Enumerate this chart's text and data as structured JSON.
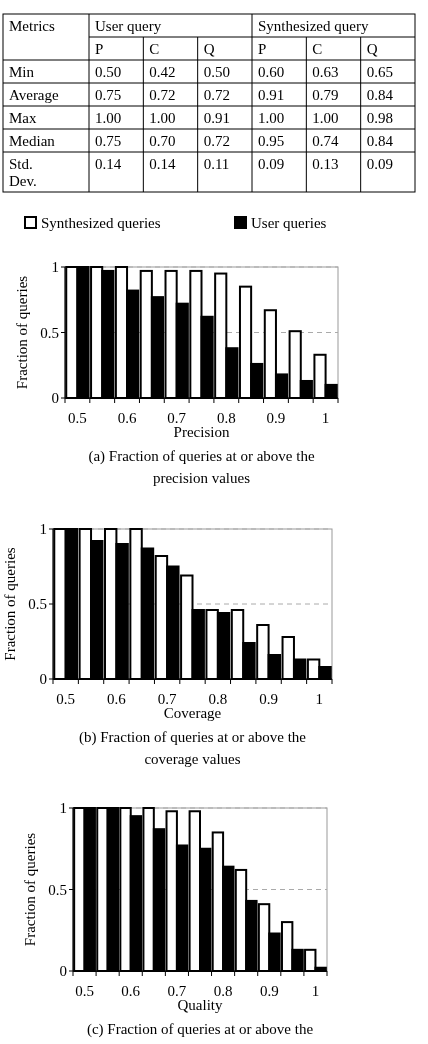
{
  "chart_data": [
    {
      "type": "heatmap",
      "categories": [
        "P",
        "C",
        "Q",
        "P",
        "C",
        "Q"
      ],
      "y_categories": [
        "Min",
        "Average",
        "Max",
        "Median",
        "Std. Dev."
      ],
      "cells": [
        [
          0.5,
          0.42,
          0.5,
          0.6,
          0.63,
          0.65
        ],
        [
          0.75,
          0.72,
          0.72,
          0.91,
          0.79,
          0.84
        ],
        [
          1.0,
          1.0,
          0.91,
          1.0,
          1.0,
          0.98
        ],
        [
          0.75,
          0.7,
          0.72,
          0.95,
          0.74,
          0.84
        ],
        [
          0.14,
          0.14,
          0.11,
          0.09,
          0.13,
          0.09
        ]
      ],
      "cell_labels": [
        [
          "0.50",
          "0.42",
          "0.50",
          "0.60",
          "0.63",
          "0.65"
        ],
        [
          "0.75",
          "0.72",
          "0.72",
          "0.91",
          "0.79",
          "0.84"
        ],
        [
          "1.00",
          "1.00",
          "0.91",
          "1.00",
          "1.00",
          "0.98"
        ],
        [
          "0.75",
          "0.70",
          "0.72",
          "0.95",
          "0.74",
          "0.84"
        ],
        [
          "0.14",
          "0.14",
          "0.11",
          "0.09",
          "0.13",
          "0.09"
        ]
      ],
      "annotations": [
        "Metrics",
        "User query",
        "Synthesized query"
      ]
    },
    {
      "type": "bar",
      "title": "(a) Fraction of queries at or above the precision values",
      "xlabel": "Precision",
      "ylabel": "Fraction of queries",
      "categories": [
        "0.5",
        null,
        "0.6",
        null,
        "0.7",
        null,
        "0.8",
        null,
        "0.9",
        null,
        "1"
      ],
      "series": [
        {
          "name": "Synthesized queries",
          "color": "#ffffff",
          "values": [
            1,
            1,
            1,
            0.97,
            0.97,
            0.97,
            0.95,
            0.85,
            0.67,
            0.51,
            0.33
          ]
        },
        {
          "name": "User queries",
          "color": "#000000",
          "values": [
            1,
            0.97,
            0.82,
            0.77,
            0.72,
            0.62,
            0.38,
            0.26,
            0.18,
            0.13,
            0.1
          ]
        }
      ],
      "ylim": [
        0,
        1
      ],
      "yticks": [
        0,
        0.5,
        1
      ],
      "grid": "y",
      "legend": "top"
    },
    {
      "type": "bar",
      "title": "(b) Fraction of queries at or above the coverage values",
      "xlabel": "Coverage",
      "ylabel": "Fraction of queries",
      "categories": [
        "0.5",
        null,
        "0.6",
        null,
        "0.7",
        null,
        "0.8",
        null,
        "0.9",
        null,
        "1"
      ],
      "series": [
        {
          "color": "#ffffff",
          "values": [
            1,
            1,
            1,
            1,
            0.82,
            0.69,
            0.46,
            0.46,
            0.36,
            0.28,
            0.13
          ]
        },
        {
          "color": "#000000",
          "values": [
            1,
            0.92,
            0.9,
            0.87,
            0.75,
            0.46,
            0.44,
            0.24,
            0.16,
            0.13,
            0.08
          ]
        }
      ],
      "ylim": [
        0,
        1
      ],
      "yticks": [
        0,
        0.5,
        1
      ],
      "grid": "y"
    },
    {
      "type": "bar",
      "title": "(c) Fraction of queries at or above the",
      "xlabel": "Quality",
      "ylabel": "Fraction of queries",
      "categories": [
        "0.5",
        null,
        "0.6",
        null,
        "0.7",
        null,
        "0.8",
        null,
        "0.9",
        null,
        "1"
      ],
      "series": [
        {
          "color": "#ffffff",
          "values": [
            1,
            1,
            1,
            1,
            0.98,
            0.98,
            0.85,
            0.62,
            0.41,
            0.3,
            0.13
          ]
        },
        {
          "color": "#000000",
          "values": [
            1,
            1,
            0.95,
            0.87,
            0.77,
            0.75,
            0.64,
            0.43,
            0.23,
            0.13,
            0.02
          ]
        }
      ],
      "ylim": [
        0,
        1
      ],
      "yticks": [
        0,
        0.5,
        1
      ],
      "grid": "y"
    }
  ]
}
